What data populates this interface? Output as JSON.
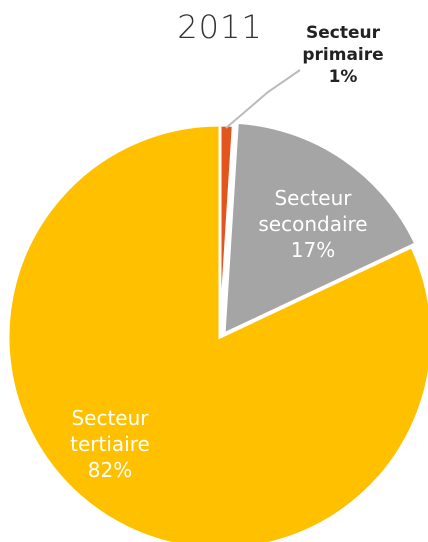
{
  "chart_data": {
    "type": "pie",
    "title": "2011",
    "categories": [
      "Secteur primaire",
      "Secteur secondaire",
      "Secteur tertiaire"
    ],
    "values": [
      1,
      17,
      82
    ],
    "value_labels": [
      "1%",
      "17%",
      "82%"
    ],
    "colors": [
      "#e2561e",
      "#a5a5a5",
      "#ffc000"
    ]
  }
}
